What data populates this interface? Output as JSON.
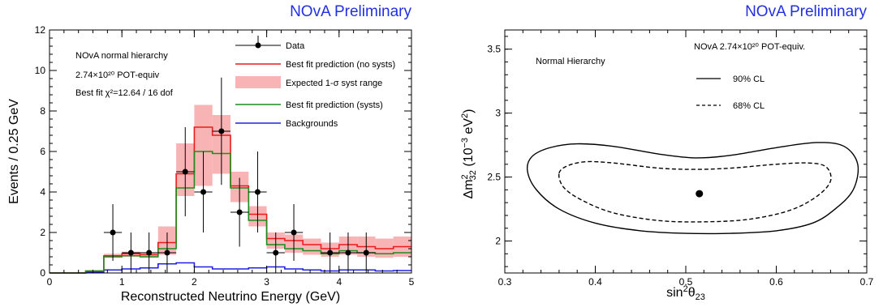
{
  "colors": {
    "prelim_text": "#2030e0",
    "nosyst_line": "#e81c1c",
    "syst_band": "#f8b4b4",
    "syst_line": "#1e8c1e",
    "background_line": "#2020e0",
    "data": "#000000"
  },
  "left_panel": {
    "preliminary": "NOvA Preliminary",
    "annotations": {
      "hierarchy": "NOvA normal hierarchy",
      "pot": "2.74×10²⁰ POT-equiv",
      "chi2": "Best fit χ²=12.64 / 16 dof"
    },
    "legend": {
      "data": "Data",
      "nosyst": "Best fit prediction (no systs)",
      "band": "Expected 1-σ syst range",
      "syst": "Best fit prediction (systs)",
      "bkg": "Backgrounds"
    }
  },
  "right_panel": {
    "preliminary": "NOvA Preliminary",
    "annotations": {
      "hierarchy": "Normal Hierarchy",
      "pot": "NOvA 2.74×10²⁰ POT-equiv."
    },
    "legend": {
      "cl90": "90% CL",
      "cl68": "68% CL"
    }
  },
  "chart_data": [
    {
      "type": "bar",
      "xlabel": "Reconstructed Neutrino Energy (GeV)",
      "ylabel": "Events / 0.25 GeV",
      "xlim": [
        0,
        5
      ],
      "ylim": [
        0,
        12
      ],
      "xticks": [
        "0",
        "1",
        "2",
        "3",
        "4",
        "5"
      ],
      "yticks": [
        "0",
        "2",
        "4",
        "6",
        "8",
        "10",
        "12"
      ],
      "bin_edges": [
        0.5,
        0.75,
        1.0,
        1.25,
        1.5,
        1.75,
        2.0,
        2.25,
        2.5,
        2.75,
        3.0,
        3.25,
        3.5,
        3.75,
        4.0,
        4.25,
        4.5,
        4.75,
        5.0
      ],
      "series": [
        {
          "name": "Best fit prediction (no systs)",
          "values": [
            0.1,
            0.85,
            0.95,
            0.9,
            1.5,
            4.9,
            7.2,
            6.8,
            4.3,
            2.9,
            1.7,
            1.6,
            1.4,
            1.2,
            1.4,
            1.3,
            1.2,
            1.3
          ]
        },
        {
          "name": "Best fit prediction (systs)",
          "values": [
            0.1,
            0.8,
            0.85,
            0.8,
            1.2,
            4.2,
            6.0,
            5.9,
            4.2,
            2.6,
            1.4,
            1.2,
            1.1,
            0.95,
            1.1,
            1.0,
            0.95,
            1.0
          ]
        },
        {
          "name": "Expected 1-σ syst range",
          "lower": [
            0.1,
            0.75,
            0.8,
            0.75,
            0.9,
            3.8,
            4.3,
            4.9,
            3.5,
            2.3,
            1.2,
            1.0,
            0.9,
            0.8,
            0.9,
            0.8,
            0.75,
            0.8
          ],
          "upper": [
            0.12,
            0.95,
            1.05,
            1.0,
            2.3,
            6.4,
            8.3,
            7.8,
            5.0,
            3.3,
            2.0,
            1.9,
            1.7,
            1.5,
            1.8,
            1.8,
            1.7,
            1.8
          ]
        },
        {
          "name": "Backgrounds",
          "values": [
            0.05,
            0.15,
            0.2,
            0.25,
            0.45,
            0.5,
            0.3,
            0.2,
            0.2,
            0.25,
            0.3,
            0.2,
            0.15,
            0.1,
            0.15,
            0.15,
            0.1,
            0.12
          ]
        }
      ],
      "data_points": {
        "name": "Data",
        "x": [
          0.875,
          1.125,
          1.375,
          1.625,
          1.875,
          2.125,
          2.375,
          2.625,
          2.875,
          3.125,
          3.375,
          3.875,
          4.125,
          4.375
        ],
        "y": [
          2,
          1,
          1,
          1,
          5,
          4,
          7,
          3,
          4,
          1,
          2,
          1,
          1,
          1
        ],
        "err": [
          1.4,
          1.0,
          1.0,
          1.0,
          2.2,
          2.0,
          2.65,
          1.7,
          2.0,
          1.0,
          1.4,
          1.0,
          1.0,
          1.0
        ]
      }
    },
    {
      "type": "contour",
      "xlabel": "sin²θ₂₃",
      "ylabel": "Δm²₃₂ (10⁻³ eV²)",
      "xlim": [
        0.3,
        0.7
      ],
      "ylim": [
        1.75,
        3.65
      ],
      "xticks": [
        "0.3",
        "0.4",
        "0.5",
        "0.6",
        "0.7"
      ],
      "yticks": [
        "2",
        "2.5",
        "3",
        "3.5"
      ],
      "best_fit": {
        "x": 0.515,
        "y": 2.37
      },
      "contours": [
        {
          "name": "90% CL",
          "style": "solid",
          "points": [
            [
              0.325,
              2.55
            ],
            [
              0.33,
              2.66
            ],
            [
              0.35,
              2.73
            ],
            [
              0.38,
              2.76
            ],
            [
              0.42,
              2.74
            ],
            [
              0.47,
              2.68
            ],
            [
              0.51,
              2.65
            ],
            [
              0.55,
              2.67
            ],
            [
              0.6,
              2.73
            ],
            [
              0.645,
              2.77
            ],
            [
              0.675,
              2.74
            ],
            [
              0.69,
              2.6
            ],
            [
              0.685,
              2.4
            ],
            [
              0.665,
              2.25
            ],
            [
              0.64,
              2.14
            ],
            [
              0.6,
              2.08
            ],
            [
              0.55,
              2.06
            ],
            [
              0.5,
              2.06
            ],
            [
              0.45,
              2.08
            ],
            [
              0.4,
              2.14
            ],
            [
              0.36,
              2.25
            ],
            [
              0.335,
              2.4
            ]
          ]
        },
        {
          "name": "68% CL",
          "style": "dashed",
          "points": [
            [
              0.36,
              2.53
            ],
            [
              0.37,
              2.59
            ],
            [
              0.39,
              2.62
            ],
            [
              0.42,
              2.61
            ],
            [
              0.47,
              2.57
            ],
            [
              0.51,
              2.56
            ],
            [
              0.55,
              2.57
            ],
            [
              0.6,
              2.6
            ],
            [
              0.635,
              2.61
            ],
            [
              0.655,
              2.58
            ],
            [
              0.66,
              2.47
            ],
            [
              0.645,
              2.35
            ],
            [
              0.615,
              2.24
            ],
            [
              0.57,
              2.17
            ],
            [
              0.52,
              2.15
            ],
            [
              0.47,
              2.16
            ],
            [
              0.42,
              2.22
            ],
            [
              0.385,
              2.32
            ],
            [
              0.365,
              2.42
            ]
          ]
        }
      ]
    }
  ]
}
